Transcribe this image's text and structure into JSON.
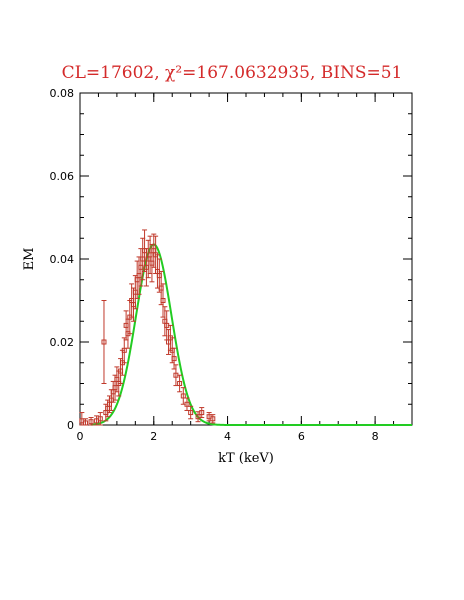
{
  "chart_data": {
    "type": "scatter",
    "title": "CL=17602, χ²=167.0632935, BINS=51",
    "xlabel": "kT (keV)",
    "ylabel": "EM",
    "xlim": [
      0,
      9
    ],
    "ylim": [
      0,
      0.08
    ],
    "x_ticks": [
      0,
      2,
      4,
      6,
      8
    ],
    "x_tick_labels": [
      "0",
      "2",
      "4",
      "6",
      "8"
    ],
    "y_ticks": [
      0,
      0.02,
      0.04,
      0.06,
      0.08
    ],
    "y_tick_labels": [
      "0",
      "0.02",
      "0.04",
      "0.06",
      "0.08"
    ],
    "grid": false,
    "colors": {
      "title": "#d42a2a",
      "points": "#c0392b",
      "fit": "#22cc22",
      "axes": "#000000"
    },
    "series": [
      {
        "kind": "points_with_errorbars",
        "x": [
          0.05,
          0.15,
          0.3,
          0.45,
          0.55,
          0.65,
          0.7,
          0.75,
          0.8,
          0.85,
          0.9,
          0.95,
          1.0,
          1.05,
          1.1,
          1.15,
          1.2,
          1.25,
          1.3,
          1.35,
          1.4,
          1.45,
          1.5,
          1.55,
          1.6,
          1.65,
          1.7,
          1.75,
          1.8,
          1.85,
          1.9,
          1.95,
          2.0,
          2.05,
          2.1,
          2.15,
          2.2,
          2.25,
          2.3,
          2.35,
          2.4,
          2.45,
          2.5,
          2.55,
          2.6,
          2.7,
          2.8,
          2.9,
          3.0,
          3.2,
          3.3,
          3.5,
          3.6
        ],
        "y": [
          0.001,
          0.0005,
          0.0008,
          0.001,
          0.0015,
          0.02,
          0.003,
          0.004,
          0.005,
          0.006,
          0.008,
          0.009,
          0.011,
          0.01,
          0.013,
          0.015,
          0.018,
          0.024,
          0.022,
          0.026,
          0.03,
          0.029,
          0.032,
          0.035,
          0.036,
          0.038,
          0.04,
          0.042,
          0.038,
          0.04,
          0.041,
          0.039,
          0.042,
          0.041,
          0.037,
          0.036,
          0.033,
          0.03,
          0.025,
          0.024,
          0.02,
          0.021,
          0.018,
          0.016,
          0.012,
          0.01,
          0.007,
          0.005,
          0.003,
          0.002,
          0.003,
          0.002,
          0.0015
        ],
        "err": [
          0.002,
          0.001,
          0.001,
          0.0012,
          0.0015,
          0.01,
          0.002,
          0.002,
          0.002,
          0.0025,
          0.0025,
          0.003,
          0.003,
          0.003,
          0.003,
          0.003,
          0.003,
          0.0035,
          0.0035,
          0.004,
          0.004,
          0.004,
          0.004,
          0.0045,
          0.0045,
          0.0045,
          0.005,
          0.005,
          0.0045,
          0.0045,
          0.0045,
          0.0045,
          0.004,
          0.0045,
          0.004,
          0.004,
          0.004,
          0.004,
          0.0035,
          0.0035,
          0.003,
          0.003,
          0.003,
          0.0025,
          0.0025,
          0.002,
          0.002,
          0.0015,
          0.0015,
          0.0012,
          0.0012,
          0.001,
          0.001
        ]
      },
      {
        "kind": "gaussian_fit",
        "amplitude": 0.0435,
        "center": 2.0,
        "sigma": 0.48,
        "x_range": [
          0.3,
          9
        ]
      }
    ]
  }
}
